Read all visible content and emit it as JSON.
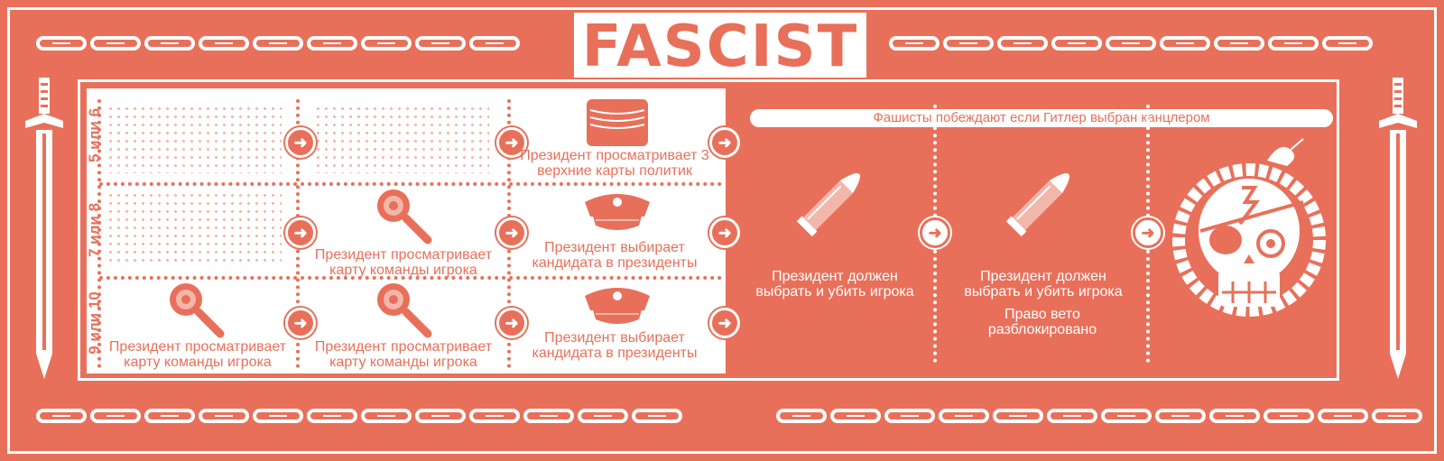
{
  "title": "FASCIST",
  "rows": [
    {
      "label": "5 или 6"
    },
    {
      "label": "7 или 8"
    },
    {
      "label": "9 или 10"
    }
  ],
  "cells": {
    "r1c3": "Президент просматривает 3 верхние карты политик",
    "r2c2": "Президент просматривает карту команды игрока",
    "r2c3": "Президент выбирает кандидата в президенты",
    "r3c1": "Президент просматривает карту команды игрока",
    "r3c2": "Президент просматривает карту команды игрока",
    "r3c3": "Президент выбирает кандидата в президенты"
  },
  "banner": "Фашисты побеждают если Гитлер выбран канцлером",
  "slot4": "Президент должен выбрать и убить игрока",
  "slot5": "Президент должен выбрать и убить игрока",
  "slot5_extra": "Право вето разблокировано",
  "arrow_glyph": "➜",
  "colors": {
    "accent": "#e8705a",
    "light": "#f2b6aa",
    "white": "#ffffff"
  },
  "icons": [
    "sword-icon",
    "chain-icon",
    "card-stack-icon",
    "magnifier-icon",
    "officer-cap-icon",
    "bullet-icon",
    "skull-snake-icon"
  ]
}
